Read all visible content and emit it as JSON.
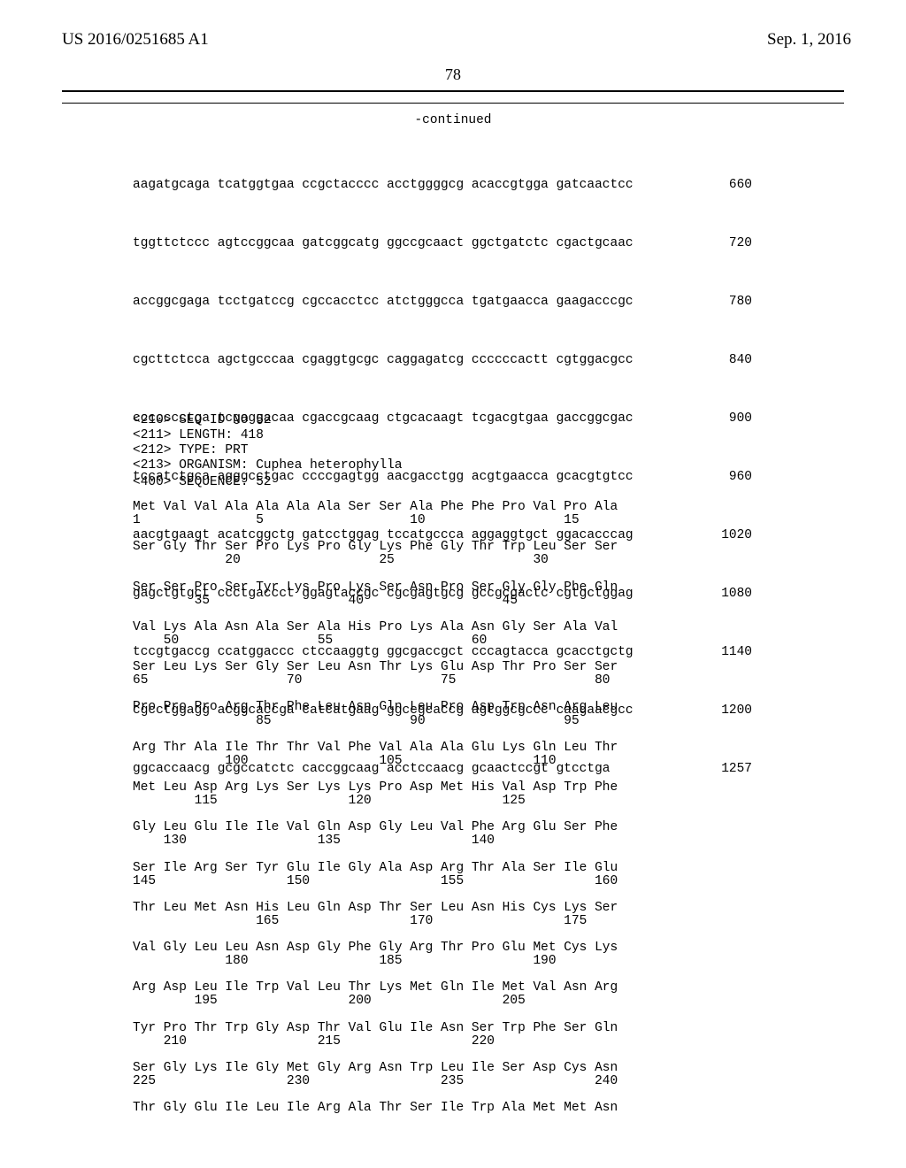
{
  "header": {
    "pub_number": "US 2016/0251685 A1",
    "pub_date": "Sep. 1, 2016"
  },
  "page_number": "78",
  "continued_label": "-continued",
  "dna_rows": [
    {
      "seq": "aagatgcaga tcatggtgaa ccgctacccc acctggggcg acaccgtgga gatcaactcc",
      "num": "660"
    },
    {
      "seq": "tggttctccc agtccggcaa gatcggcatg ggccgcaact ggctgatctc cgactgcaac",
      "num": "720"
    },
    {
      "seq": "accggcgaga tcctgatccg cgccacctcc atctgggcca tgatgaacca gaagacccgc",
      "num": "780"
    },
    {
      "seq": "cgcttctcca agctgcccaa cgaggtgcgc caggagatcg ccccccactt cgtggacgcc",
      "num": "840"
    },
    {
      "seq": "ccccccctga tcgaggacaa cgaccgcaag ctgcacaagt tcgacgtgaa gaccggcgac",
      "num": "900"
    },
    {
      "seq": "tccatctgca agggcctgac ccccgagtgg aacgacctgg acgtgaacca gcacgtgtcc",
      "num": "960"
    },
    {
      "seq": "aacgtgaagt acatcggctg gatcctggag tccatgccca aggaggtgct ggacacccag",
      "num": "1020"
    },
    {
      "seq": "gagctgtgct ccctgaccct ggagtaccgc cgcgagtgcg gccgcgactc cgtgctggag",
      "num": "1080"
    },
    {
      "seq": "tccgtgaccg ccatggaccc ctccaaggtg ggcgaccgct cccagtacca gcacctgctg",
      "num": "1140"
    },
    {
      "seq": "cgcctggagg acggcaccga catcatgaag ggccgcaccg agtggcgccc caagaacgcc",
      "num": "1200"
    },
    {
      "seq": "ggcaccaacg gcgccatctc caccggcaag acctccaacg gcaactccgt gtcctga",
      "num": "1257"
    }
  ],
  "meta": {
    "seq_id": "<210> SEQ ID NO 52",
    "length": "<211> LENGTH: 418",
    "type": "<212> TYPE: PRT",
    "organism": "<213> ORGANISM: Cuphea heterophylla"
  },
  "sequence_label": "<400> SEQUENCE: 52",
  "protein_rows": [
    "Met Val Val Ala Ala Ala Ala Ser Ser Ala Phe Phe Pro Val Pro Ala",
    "1               5                   10                  15",
    "",
    "Ser Gly Thr Ser Pro Lys Pro Gly Lys Phe Gly Thr Trp Leu Ser Ser",
    "            20                  25                  30",
    "",
    "Ser Ser Pro Ser Tyr Lys Pro Lys Ser Asn Pro Ser Gly Gly Phe Gln",
    "        35                  40                  45",
    "",
    "Val Lys Ala Asn Ala Ser Ala His Pro Lys Ala Asn Gly Ser Ala Val",
    "    50                  55                  60",
    "",
    "Ser Leu Lys Ser Gly Ser Leu Asn Thr Lys Glu Asp Thr Pro Ser Ser",
    "65                  70                  75                  80",
    "",
    "Pro Pro Pro Arg Thr Phe Leu Asn Gln Leu Pro Asp Trp Asn Arg Leu",
    "                85                  90                  95",
    "",
    "Arg Thr Ala Ile Thr Thr Val Phe Val Ala Ala Glu Lys Gln Leu Thr",
    "            100                 105                 110",
    "",
    "Met Leu Asp Arg Lys Ser Lys Lys Pro Asp Met His Val Asp Trp Phe",
    "        115                 120                 125",
    "",
    "Gly Leu Glu Ile Ile Val Gln Asp Gly Leu Val Phe Arg Glu Ser Phe",
    "    130                 135                 140",
    "",
    "Ser Ile Arg Ser Tyr Glu Ile Gly Ala Asp Arg Thr Ala Ser Ile Glu",
    "145                 150                 155                 160",
    "",
    "Thr Leu Met Asn His Leu Gln Asp Thr Ser Leu Asn His Cys Lys Ser",
    "                165                 170                 175",
    "",
    "Val Gly Leu Leu Asn Asp Gly Phe Gly Arg Thr Pro Glu Met Cys Lys",
    "            180                 185                 190",
    "",
    "Arg Asp Leu Ile Trp Val Leu Thr Lys Met Gln Ile Met Val Asn Arg",
    "        195                 200                 205",
    "",
    "Tyr Pro Thr Trp Gly Asp Thr Val Glu Ile Asn Ser Trp Phe Ser Gln",
    "    210                 215                 220",
    "",
    "Ser Gly Lys Ile Gly Met Gly Arg Asn Trp Leu Ile Ser Asp Cys Asn",
    "225                 230                 235                 240",
    "",
    "Thr Gly Glu Ile Leu Ile Arg Ala Thr Ser Ile Trp Ala Met Met Asn"
  ]
}
